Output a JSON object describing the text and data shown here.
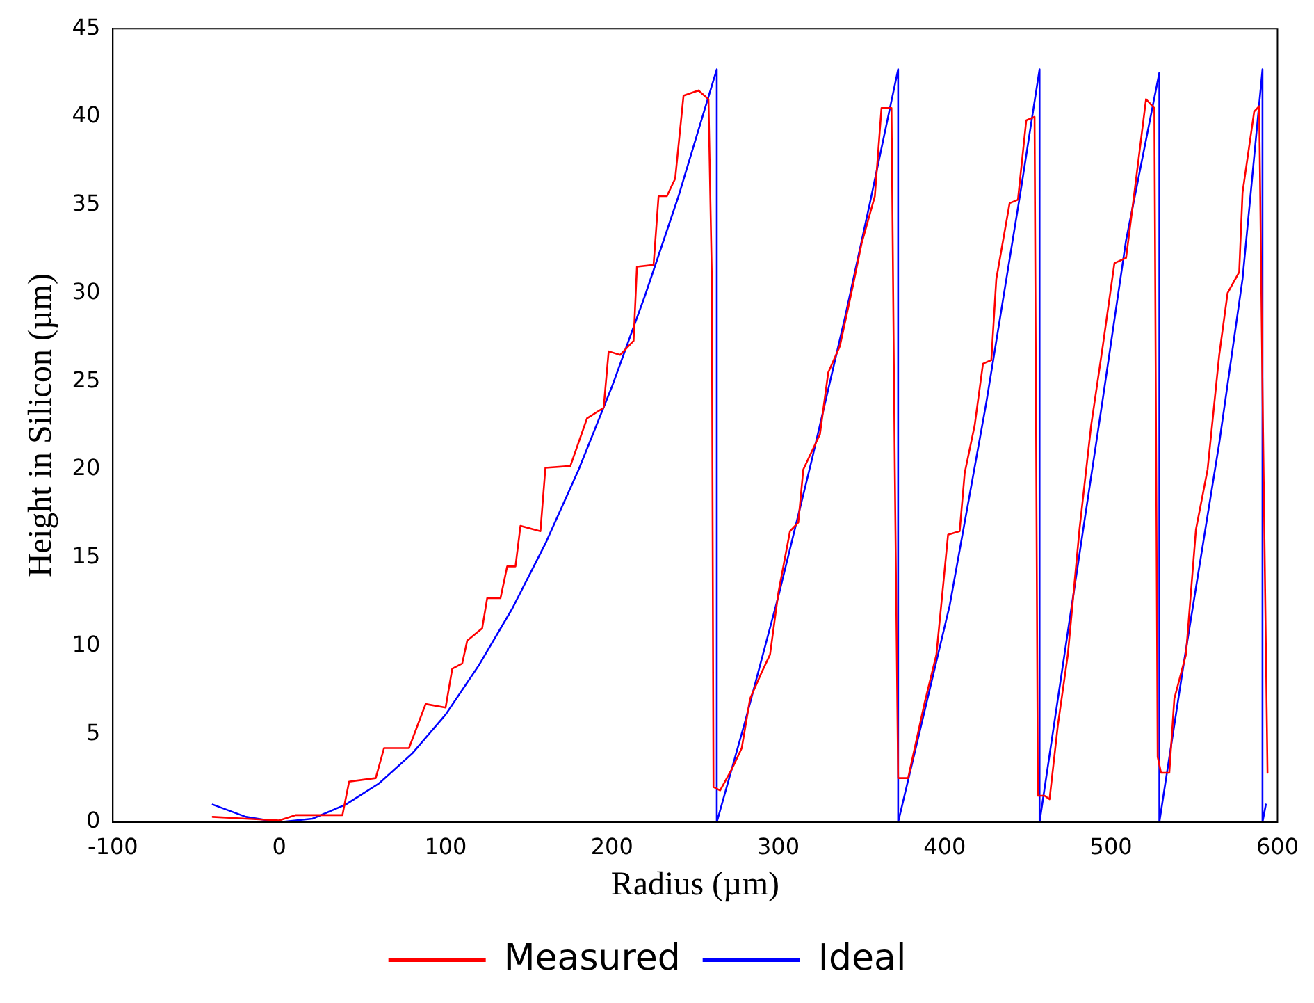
{
  "chart_data": {
    "type": "line",
    "xlabel": "Radius (µm)",
    "ylabel": "Height in Silicon (µm)",
    "xlim": [
      -100,
      600
    ],
    "ylim": [
      0,
      45
    ],
    "xticks": [
      -100,
      0,
      100,
      200,
      300,
      400,
      500,
      600
    ],
    "yticks": [
      0,
      5,
      10,
      15,
      20,
      25,
      30,
      35,
      40,
      45
    ],
    "grid": false,
    "legend": "bottom",
    "marker": "none",
    "line_style": "solid",
    "series": [
      {
        "name": "Measured",
        "color": "#ff0000",
        "x": [
          -40,
          -20,
          0,
          10,
          38,
          42,
          58,
          63,
          78,
          88,
          100,
          104,
          110,
          113,
          122,
          125,
          133,
          137,
          142,
          145,
          157,
          160,
          175,
          185,
          195,
          198,
          205,
          213,
          215,
          225,
          228,
          233,
          238,
          243,
          252,
          258,
          260,
          261,
          265,
          272,
          278,
          283,
          290,
          295,
          300,
          307,
          312,
          315,
          325,
          330,
          337,
          345,
          350,
          358,
          362,
          368,
          370,
          372,
          378,
          388,
          395,
          402,
          409,
          412,
          418,
          423,
          428,
          431,
          439,
          444,
          449,
          454,
          456,
          460,
          463,
          468,
          474,
          481,
          488,
          495,
          502,
          509,
          514,
          521,
          526,
          528,
          530,
          535,
          538,
          545,
          551,
          558,
          565,
          570,
          577,
          579,
          586,
          589,
          591,
          594
        ],
        "values": [
          0.3,
          0.2,
          0.1,
          0.4,
          0.4,
          2.3,
          2.5,
          4.2,
          4.2,
          6.7,
          6.5,
          8.7,
          9.0,
          10.3,
          11.0,
          12.7,
          12.7,
          14.5,
          14.5,
          16.8,
          16.5,
          20.1,
          20.2,
          22.9,
          23.5,
          26.7,
          26.5,
          27.3,
          31.5,
          31.6,
          35.5,
          35.5,
          36.5,
          41.2,
          41.5,
          41,
          31,
          2,
          1.8,
          3,
          4.2,
          7,
          8.5,
          9.5,
          13,
          16.5,
          17,
          20,
          22,
          25.5,
          27,
          30.5,
          32.8,
          35.5,
          40.5,
          40.5,
          20,
          2.5,
          2.5,
          6.8,
          9.5,
          16.3,
          16.5,
          19.8,
          22.5,
          26,
          26.2,
          30.8,
          35.1,
          35.3,
          39.8,
          40,
          1.5,
          1.5,
          1.3,
          5.5,
          9.5,
          16.6,
          22.5,
          27,
          31.7,
          32,
          35.7,
          41,
          40.5,
          3.7,
          2.8,
          2.8,
          7,
          9.5,
          16.6,
          20,
          26.5,
          30,
          31.2,
          35.7,
          40.3,
          40.6,
          24.6,
          2.8
        ]
      },
      {
        "name": "Ideal",
        "color": "#0000ff",
        "x": [
          -40,
          -20,
          0,
          20,
          40,
          60,
          80,
          100,
          120,
          140,
          160,
          180,
          200,
          220,
          240,
          263,
          263,
          280,
          300,
          320,
          340,
          355,
          372,
          372,
          403,
          425,
          446,
          457,
          457,
          474,
          495,
          509,
          529,
          529,
          544,
          565,
          579,
          591,
          591,
          593
        ],
        "values": [
          1.0,
          0.3,
          0,
          0.2,
          1.0,
          2.2,
          3.9,
          6.1,
          8.9,
          12.1,
          15.8,
          20.0,
          24.7,
          29.9,
          35.5,
          42.7,
          0,
          5.7,
          12.8,
          20.5,
          28.6,
          35.1,
          42.7,
          0,
          12.3,
          23.8,
          36,
          42.7,
          0,
          10.8,
          24,
          33,
          42.5,
          0,
          9.2,
          21.5,
          30.8,
          42.7,
          0,
          1
        ]
      }
    ]
  }
}
